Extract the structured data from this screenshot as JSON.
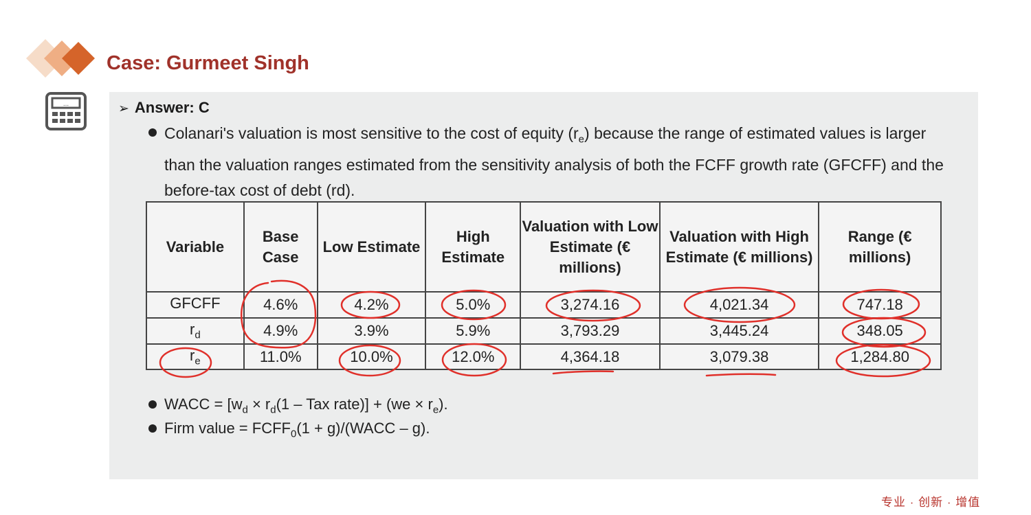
{
  "title": "Case: Gurmeet Singh",
  "answer": "Answer: C",
  "explanation": {
    "part1": "Colanari's valuation is most sensitive to the cost of equity (r",
    "sub1": "e",
    "part2": ") because the range of estimated values is larger than the valuation ranges estimated from the sensitivity analysis of both the FCFF growth rate (GFCFF) and the before-tax cost of debt (rd)."
  },
  "table": {
    "headers": [
      "Variable",
      "Base Case",
      "Low Estimate",
      "High Estimate",
      "Valuation with Low Estimate (€ millions)",
      "Valuation with High Estimate (€ millions)",
      "Range (€ millions)"
    ],
    "rows": [
      {
        "var_main": "GFCFF",
        "var_sub": "",
        "cells": [
          "4.6%",
          "4.2%",
          "5.0%",
          "3,274.16",
          "4,021.34",
          "747.18"
        ]
      },
      {
        "var_main": "r",
        "var_sub": "d",
        "cells": [
          "4.9%",
          "3.9%",
          "5.9%",
          "3,793.29",
          "3,445.24",
          "348.05"
        ]
      },
      {
        "var_main": "r",
        "var_sub": "e",
        "cells": [
          "11.0%",
          "10.0%",
          "12.0%",
          "4,364.18",
          "3,079.38",
          "1,284.80"
        ]
      }
    ]
  },
  "formulas": {
    "wacc": {
      "t1": "WACC = [w",
      "s1": "d",
      "t2": " × r",
      "s2": "d",
      "t3": "(1 – Tax rate)] + (we × r",
      "s3": "e",
      "t4": ")."
    },
    "firm": {
      "t1": "Firm value = FCFF",
      "s1": "0",
      "t2": "(1 + g)/(WACC – g)."
    }
  },
  "footer": "专业 · 创新 · 增值",
  "colors": {
    "accent": "#a0322a",
    "panel": "#eceded",
    "annotation": "#e0302a"
  }
}
